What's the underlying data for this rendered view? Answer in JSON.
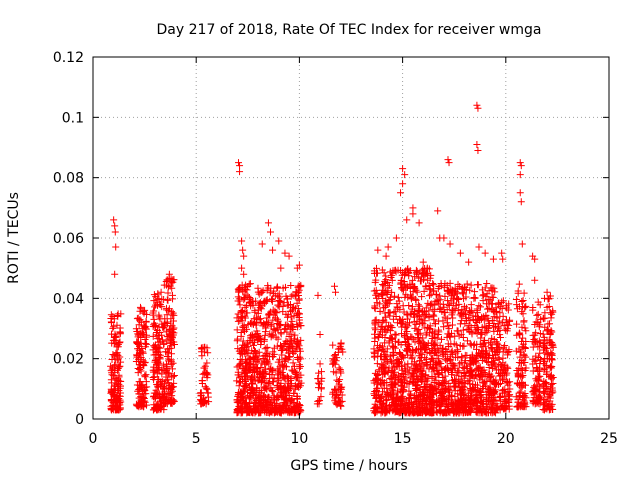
{
  "chart_data": {
    "type": "scatter",
    "title": "Day 217 of 2018, Rate Of TEC Index for receiver wmga",
    "xlabel": "GPS time / hours",
    "ylabel": "ROTI / TECUs",
    "xlim": [
      0,
      25
    ],
    "ylim": [
      0,
      0.12
    ],
    "x_ticks": [
      "0",
      "5",
      "10",
      "15",
      "20",
      "25"
    ],
    "y_ticks": [
      "0",
      "0.02",
      "0.04",
      "0.06",
      "0.08",
      "0.1",
      "0.12"
    ],
    "grid": true,
    "marker": "+",
    "color": "#ff0000",
    "series": [
      {
        "clusters": [
          {
            "x": [
              0.85,
              1.35
            ],
            "y": [
              0.003,
              0.035
            ],
            "n": 150
          },
          {
            "x": [
              2.1,
              2.6
            ],
            "y": [
              0.004,
              0.037
            ],
            "n": 140
          },
          {
            "x": [
              2.9,
              3.45
            ],
            "y": [
              0.003,
              0.042
            ],
            "n": 160
          },
          {
            "x": [
              3.45,
              3.95
            ],
            "y": [
              0.005,
              0.047
            ],
            "n": 140
          },
          {
            "x": [
              5.2,
              5.6
            ],
            "y": [
              0.005,
              0.024
            ],
            "n": 50
          },
          {
            "x": [
              6.95,
              10.1
            ],
            "y": [
              0.002,
              0.045
            ],
            "n": 900
          },
          {
            "x": [
              10.8,
              11.1
            ],
            "y": [
              0.005,
              0.02
            ],
            "n": 18
          },
          {
            "x": [
              11.6,
              12.1
            ],
            "y": [
              0.004,
              0.026
            ],
            "n": 60
          },
          {
            "x": [
              13.6,
              16.5
            ],
            "y": [
              0.002,
              0.05
            ],
            "n": 900
          },
          {
            "x": [
              16.5,
              19.6
            ],
            "y": [
              0.002,
              0.045
            ],
            "n": 850
          },
          {
            "x": [
              19.6,
              20.2
            ],
            "y": [
              0.003,
              0.04
            ],
            "n": 120
          },
          {
            "x": [
              20.5,
              21.0
            ],
            "y": [
              0.004,
              0.045
            ],
            "n": 110
          },
          {
            "x": [
              21.3,
              21.7
            ],
            "y": [
              0.005,
              0.04
            ],
            "n": 90
          },
          {
            "x": [
              21.8,
              22.3
            ],
            "y": [
              0.003,
              0.041
            ],
            "n": 130
          }
        ],
        "points": [
          [
            1.0,
            0.066
          ],
          [
            1.05,
            0.064
          ],
          [
            1.08,
            0.062
          ],
          [
            1.1,
            0.057
          ],
          [
            1.05,
            0.048
          ],
          [
            1.2,
            0.034
          ],
          [
            2.3,
            0.037
          ],
          [
            2.5,
            0.036
          ],
          [
            3.3,
            0.042
          ],
          [
            3.6,
            0.046
          ],
          [
            3.7,
            0.048
          ],
          [
            7.05,
            0.085
          ],
          [
            7.1,
            0.084
          ],
          [
            7.1,
            0.082
          ],
          [
            7.2,
            0.059
          ],
          [
            7.25,
            0.056
          ],
          [
            7.3,
            0.054
          ],
          [
            7.2,
            0.05
          ],
          [
            7.3,
            0.048
          ],
          [
            8.5,
            0.065
          ],
          [
            8.6,
            0.062
          ],
          [
            8.2,
            0.058
          ],
          [
            8.7,
            0.056
          ],
          [
            9.0,
            0.059
          ],
          [
            9.3,
            0.055
          ],
          [
            9.5,
            0.054
          ],
          [
            9.1,
            0.05
          ],
          [
            10.0,
            0.051
          ],
          [
            9.9,
            0.05
          ],
          [
            10.9,
            0.041
          ],
          [
            11.0,
            0.028
          ],
          [
            11.7,
            0.044
          ],
          [
            11.75,
            0.042
          ],
          [
            13.8,
            0.056
          ],
          [
            14.3,
            0.057
          ],
          [
            14.2,
            0.054
          ],
          [
            14.7,
            0.06
          ],
          [
            14.9,
            0.075
          ],
          [
            15.0,
            0.078
          ],
          [
            15.1,
            0.081
          ],
          [
            15.0,
            0.083
          ],
          [
            15.2,
            0.066
          ],
          [
            15.5,
            0.07
          ],
          [
            15.5,
            0.068
          ],
          [
            15.8,
            0.065
          ],
          [
            16.0,
            0.052
          ],
          [
            16.2,
            0.05
          ],
          [
            16.7,
            0.069
          ],
          [
            16.8,
            0.06
          ],
          [
            17.0,
            0.06
          ],
          [
            17.2,
            0.086
          ],
          [
            17.25,
            0.085
          ],
          [
            17.3,
            0.058
          ],
          [
            17.8,
            0.055
          ],
          [
            18.2,
            0.052
          ],
          [
            18.6,
            0.104
          ],
          [
            18.65,
            0.103
          ],
          [
            18.6,
            0.091
          ],
          [
            18.65,
            0.089
          ],
          [
            18.7,
            0.057
          ],
          [
            19.0,
            0.055
          ],
          [
            19.4,
            0.053
          ],
          [
            19.8,
            0.055
          ],
          [
            19.85,
            0.053
          ],
          [
            20.7,
            0.085
          ],
          [
            20.75,
            0.084
          ],
          [
            20.7,
            0.081
          ],
          [
            20.7,
            0.075
          ],
          [
            20.75,
            0.072
          ],
          [
            20.8,
            0.058
          ],
          [
            21.3,
            0.054
          ],
          [
            21.4,
            0.053
          ],
          [
            21.4,
            0.046
          ],
          [
            22.0,
            0.042
          ],
          [
            22.1,
            0.04
          ],
          [
            22.0,
            0.037
          ]
        ]
      }
    ]
  }
}
